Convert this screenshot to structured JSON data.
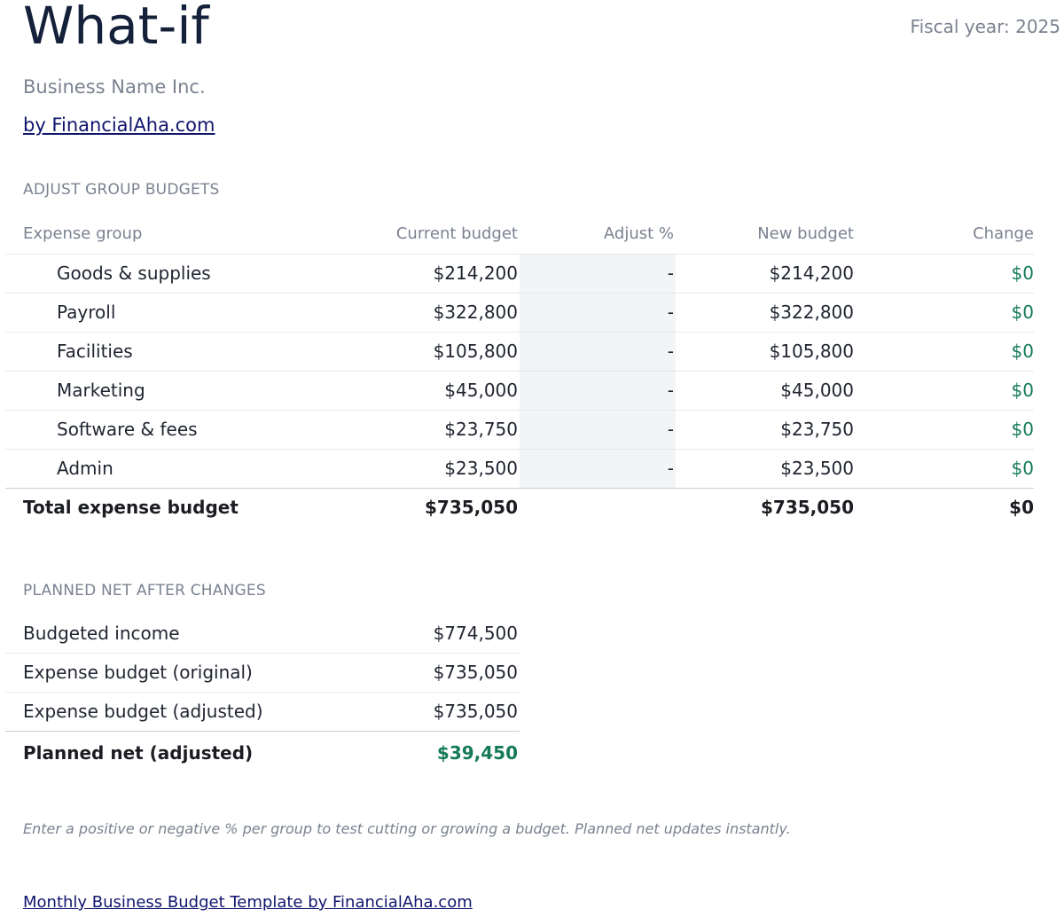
{
  "header": {
    "title": "What-if",
    "fiscal_year": "Fiscal year: 2025",
    "business_name": "Business Name Inc.",
    "by_link": "by FinancialAha.com"
  },
  "adjust": {
    "section_label": "ADJUST GROUP BUDGETS",
    "columns": {
      "group": "Expense group",
      "current": "Current budget",
      "adjust": "Adjust %",
      "new": "New budget",
      "change": "Change"
    },
    "rows": [
      {
        "group": "Goods & supplies",
        "current": "$214,200",
        "adjust": "-",
        "new": "$214,200",
        "change": "$0"
      },
      {
        "group": "Payroll",
        "current": "$322,800",
        "adjust": "-",
        "new": "$322,800",
        "change": "$0"
      },
      {
        "group": "Facilities",
        "current": "$105,800",
        "adjust": "-",
        "new": "$105,800",
        "change": "$0"
      },
      {
        "group": "Marketing",
        "current": "$45,000",
        "adjust": "-",
        "new": "$45,000",
        "change": "$0"
      },
      {
        "group": "Software & fees",
        "current": "$23,750",
        "adjust": "-",
        "new": "$23,750",
        "change": "$0"
      },
      {
        "group": "Admin",
        "current": "$23,500",
        "adjust": "-",
        "new": "$23,500",
        "change": "$0"
      }
    ],
    "total": {
      "label": "Total expense budget",
      "current": "$735,050",
      "new": "$735,050",
      "change": "$0"
    }
  },
  "net": {
    "section_label": "PLANNED NET AFTER CHANGES",
    "rows": [
      {
        "label": "Budgeted income",
        "value": "$774,500"
      },
      {
        "label": "Expense budget (original)",
        "value": "$735,050"
      },
      {
        "label": "Expense budget (adjusted)",
        "value": "$735,050"
      }
    ],
    "final": {
      "label": "Planned net (adjusted)",
      "value": "$39,450"
    }
  },
  "note": "Enter a positive or negative % per group to test cutting or growing a budget. Planned net updates instantly.",
  "footer_link": "Monthly Business Budget Template by FinancialAha.com",
  "colors": {
    "accent_positive": "#157a5a",
    "link": "#10166e",
    "title": "#15213a"
  }
}
